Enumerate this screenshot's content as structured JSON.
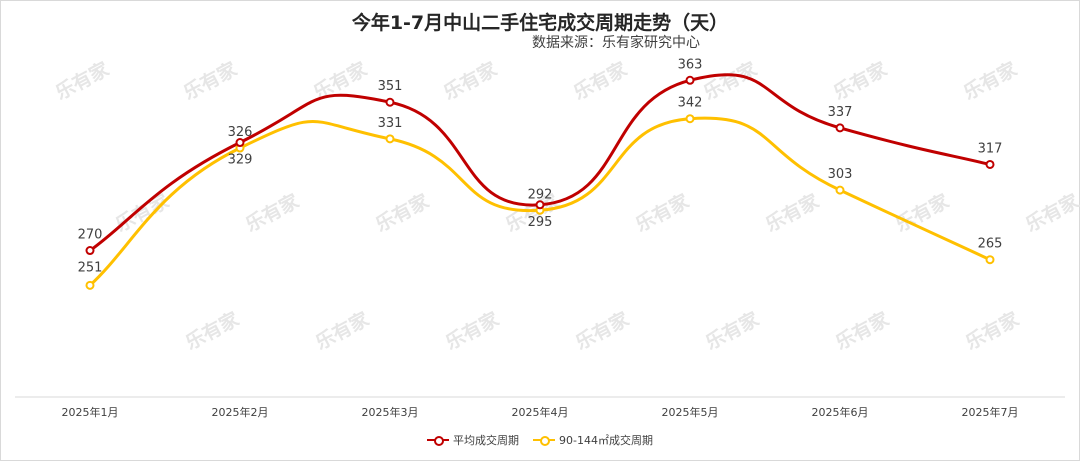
{
  "title": "今年1-7月中山二手住宅成交周期走势（天）",
  "source": "数据来源：乐有家研究中心",
  "watermark": "乐有家",
  "colors": {
    "avg": "#c00000",
    "mid": "#ffc000",
    "axis": "#d9d9d9",
    "watermark": "#e6e6e6"
  },
  "chart_data": {
    "type": "line",
    "title": "今年1-7月中山二手住宅成交周期走势（天）",
    "xlabel": "",
    "ylabel": "",
    "categories": [
      "2025年1月",
      "2025年2月",
      "2025年3月",
      "2025年4月",
      "2025年5月",
      "2025年6月",
      "2025年7月"
    ],
    "series": [
      {
        "name": "平均成交周期",
        "color": "#c00000",
        "values": [
          270,
          329,
          351,
          295,
          363,
          337,
          317
        ]
      },
      {
        "name": "90-144㎡成交周期",
        "color": "#ffc000",
        "values": [
          251,
          326,
          331,
          292,
          342,
          303,
          265
        ]
      }
    ],
    "ylim": [
      190,
      385
    ],
    "smooth": true,
    "grid": false,
    "legend_position": "bottom"
  }
}
